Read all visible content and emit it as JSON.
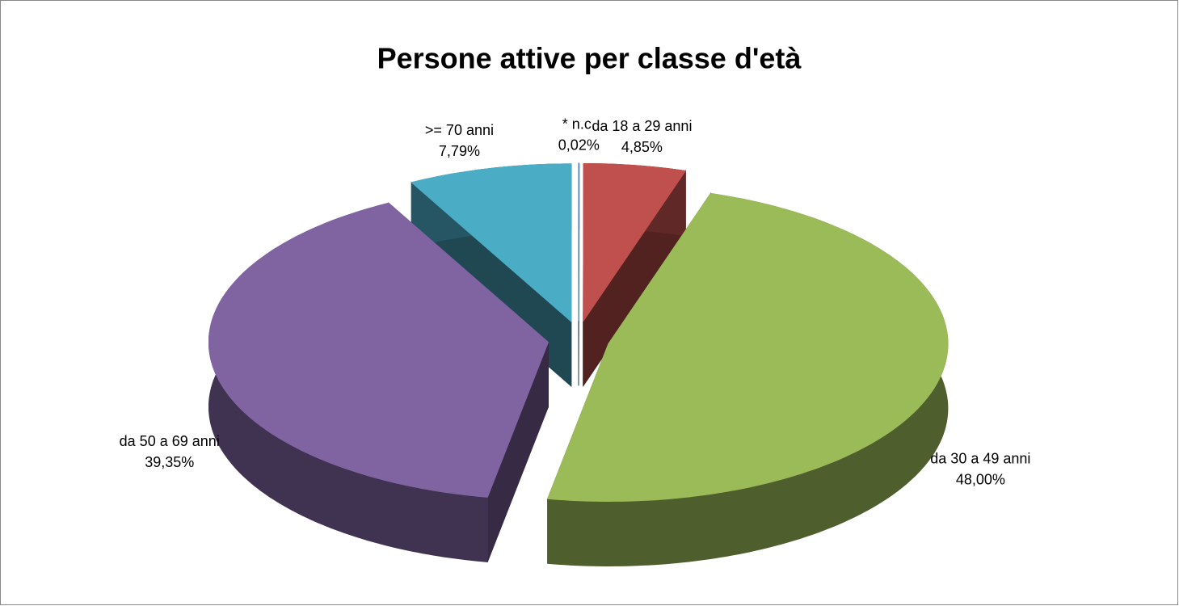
{
  "chart_data": {
    "type": "pie",
    "title": "Persone attive per classe d'età",
    "categories": [
      "* n.c.",
      "da 18 a 29 anni",
      "da 30 a 49 anni",
      "da 50 a 69 anni",
      ">= 70 anni"
    ],
    "values": [
      0.02,
      4.85,
      48.0,
      39.35,
      7.79
    ],
    "value_labels": [
      "0,02%",
      "4,85%",
      "48,00%",
      "39,35%",
      "7,79%"
    ],
    "colors": [
      "#4f81bd",
      "#c0504d",
      "#9bbb59",
      "#8064a2",
      "#4bacc6"
    ]
  }
}
